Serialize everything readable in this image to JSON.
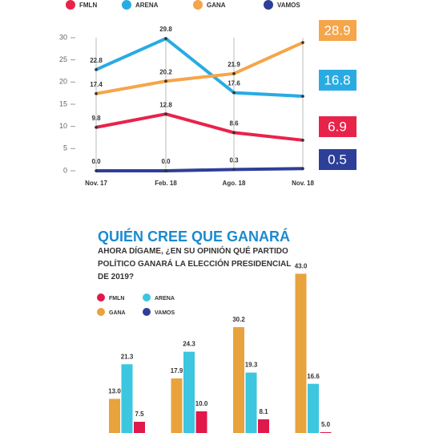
{
  "chart_data": [
    {
      "type": "line",
      "categories": [
        "Nov. 17",
        "Feb. 18",
        "Ago. 18",
        "Nov. 18"
      ],
      "ylim": [
        0,
        30
      ],
      "yticks": [
        0,
        5,
        10,
        15,
        20,
        25,
        30
      ],
      "series": [
        {
          "name": "FMLN",
          "color": "#e8234a",
          "values": [
            9.8,
            12.8,
            8.6,
            6.9
          ],
          "value_labels": [
            "9.8",
            "12.8",
            "8.6",
            "6.9"
          ]
        },
        {
          "name": "ARENA",
          "color": "#29abe2",
          "values": [
            22.8,
            29.8,
            17.6,
            16.8
          ],
          "value_labels": [
            "22.8",
            "29.8",
            "17.6",
            "16.8"
          ]
        },
        {
          "name": "GANA",
          "color": "#f5a54a",
          "values": [
            17.4,
            20.2,
            21.9,
            28.9
          ],
          "value_labels": [
            "17.4",
            "20.2",
            "21.9",
            "28.9"
          ]
        },
        {
          "name": "VAMOS",
          "color": "#2e3f99",
          "values": [
            0,
            0,
            0.3,
            0.5
          ],
          "value_labels": [
            "0.0",
            "0.0",
            "0.3",
            "0.5"
          ]
        }
      ]
    },
    {
      "type": "bar",
      "title": "QUIÉN CREE QUE GANARÁ",
      "subtitle": "AHORA DÍGAME, ¿EN SU OPINIÓN QUÉ PARTIDO POLÍTICO GANARÁ LA ELECCIÓN PRESIDENCIAL DE 2019?",
      "categories": [
        null,
        null,
        null,
        null
      ],
      "series": [
        {
          "name": "GANA",
          "color": "#e8a33c",
          "values": [
            13.0,
            17.9,
            30.2,
            43.0
          ],
          "value_labels": [
            "13.0",
            "17.9",
            "30.2",
            "43.0"
          ]
        },
        {
          "name": "ARENA",
          "color": "#3cc6e0",
          "values": [
            21.3,
            24.3,
            19.3,
            16.6
          ],
          "value_labels": [
            "21.3",
            "24.3",
            "19.3",
            "16.6"
          ]
        },
        {
          "name": "FMLN",
          "color": "#e0194a",
          "values": [
            7.5,
            10.0,
            8.1,
            5.0
          ],
          "value_labels": [
            "7.5",
            "10.0",
            "8.1",
            "5.0"
          ]
        },
        {
          "name": "VAMOS",
          "color": "#2e3f99",
          "values": [
            null,
            null,
            null,
            null
          ]
        }
      ]
    }
  ]
}
